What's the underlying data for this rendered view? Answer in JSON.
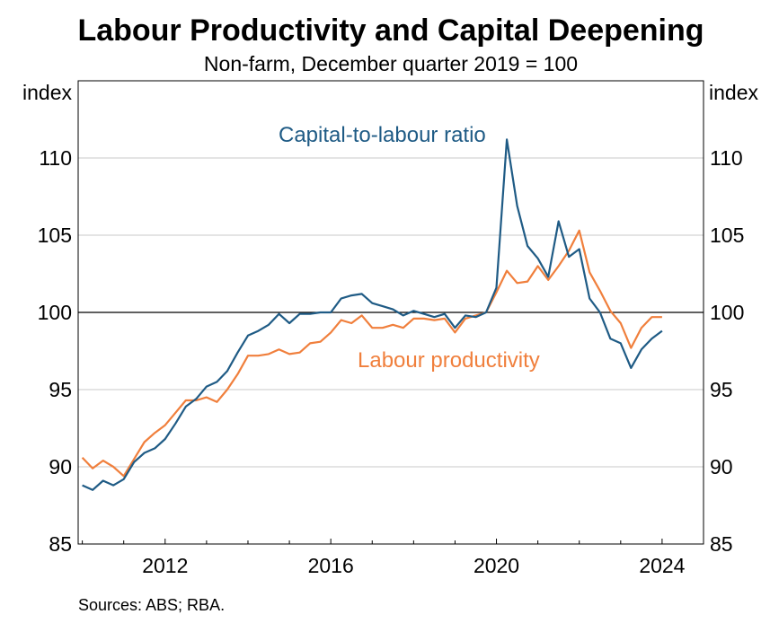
{
  "chart_data": {
    "type": "line",
    "title": "Labour Productivity and Capital Deepening",
    "subtitle": "Non-farm, December quarter 2019 = 100",
    "ylabel_left": "index",
    "ylabel_right": "index",
    "ylim": [
      85,
      115
    ],
    "yticks": [
      85,
      90,
      95,
      100,
      105,
      110
    ],
    "xlim": [
      2009.9,
      2025.0
    ],
    "xticks": [
      2012,
      2016,
      2020,
      2024
    ],
    "xtick_labels": [
      "2012",
      "2016",
      "2020",
      "2024"
    ],
    "reference_line": 100,
    "source": "Sources: ABS; RBA.",
    "colors": {
      "capital": "#1f5b85",
      "productivity": "#f07f3c",
      "grid": "#c8c8c8",
      "reference": "#000000"
    },
    "series": [
      {
        "name": "Capital-to-labour ratio",
        "key": "capital",
        "x": [
          2010.0,
          2010.25,
          2010.5,
          2010.75,
          2011.0,
          2011.25,
          2011.5,
          2011.75,
          2012.0,
          2012.25,
          2012.5,
          2012.75,
          2013.0,
          2013.25,
          2013.5,
          2013.75,
          2014.0,
          2014.25,
          2014.5,
          2014.75,
          2015.0,
          2015.25,
          2015.5,
          2015.75,
          2016.0,
          2016.25,
          2016.5,
          2016.75,
          2017.0,
          2017.25,
          2017.5,
          2017.75,
          2018.0,
          2018.25,
          2018.5,
          2018.75,
          2019.0,
          2019.25,
          2019.5,
          2019.75,
          2020.0,
          2020.25,
          2020.5,
          2020.75,
          2021.0,
          2021.25,
          2021.5,
          2021.75,
          2022.0,
          2022.25,
          2022.5,
          2022.75,
          2023.0,
          2023.25,
          2023.5,
          2023.75,
          2024.0
        ],
        "values": [
          88.8,
          88.5,
          89.1,
          88.8,
          89.2,
          90.3,
          90.9,
          91.2,
          91.8,
          92.8,
          93.9,
          94.4,
          95.2,
          95.5,
          96.2,
          97.4,
          98.5,
          98.8,
          99.2,
          99.9,
          99.3,
          99.9,
          99.9,
          100.0,
          100.0,
          100.9,
          101.1,
          101.2,
          100.6,
          100.4,
          100.2,
          99.8,
          100.1,
          99.9,
          99.7,
          99.9,
          99.0,
          99.8,
          99.7,
          100.0,
          101.6,
          111.2,
          106.9,
          104.3,
          103.5,
          102.3,
          105.9,
          103.6,
          104.1,
          100.9,
          100.0,
          98.3,
          98.0,
          96.4,
          97.6,
          98.3,
          98.8
        ]
      },
      {
        "name": "Labour productivity",
        "key": "productivity",
        "x": [
          2010.0,
          2010.25,
          2010.5,
          2010.75,
          2011.0,
          2011.25,
          2011.5,
          2011.75,
          2012.0,
          2012.25,
          2012.5,
          2012.75,
          2013.0,
          2013.25,
          2013.5,
          2013.75,
          2014.0,
          2014.25,
          2014.5,
          2014.75,
          2015.0,
          2015.25,
          2015.5,
          2015.75,
          2016.0,
          2016.25,
          2016.5,
          2016.75,
          2017.0,
          2017.25,
          2017.5,
          2017.75,
          2018.0,
          2018.25,
          2018.5,
          2018.75,
          2019.0,
          2019.25,
          2019.5,
          2019.75,
          2020.0,
          2020.25,
          2020.5,
          2020.75,
          2021.0,
          2021.25,
          2021.5,
          2021.75,
          2022.0,
          2022.25,
          2022.5,
          2022.75,
          2023.0,
          2023.25,
          2023.5,
          2023.75,
          2024.0
        ],
        "values": [
          90.6,
          89.9,
          90.4,
          90.0,
          89.4,
          90.5,
          91.6,
          92.2,
          92.7,
          93.5,
          94.3,
          94.3,
          94.5,
          94.2,
          95.0,
          96.0,
          97.2,
          97.2,
          97.3,
          97.6,
          97.3,
          97.4,
          98.0,
          98.1,
          98.7,
          99.5,
          99.3,
          99.8,
          99.0,
          99.0,
          99.2,
          99.0,
          99.6,
          99.6,
          99.5,
          99.6,
          98.7,
          99.6,
          99.8,
          100.0,
          101.3,
          102.7,
          101.9,
          102.0,
          103.0,
          102.1,
          103.0,
          104.0,
          105.3,
          102.6,
          101.4,
          100.1,
          99.3,
          97.7,
          99.0,
          99.7,
          99.7
        ]
      }
    ],
    "labels": {
      "capital": "Capital-to-labour ratio",
      "productivity": "Labour productivity"
    }
  }
}
